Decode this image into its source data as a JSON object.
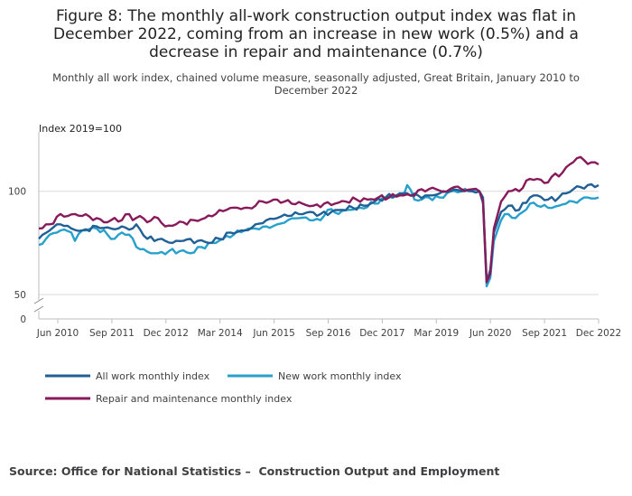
{
  "title": "Figure 8: The monthly all-work construction output index was flat in December 2022, coming from an increase in new work (0.5%) and a decrease in repair and maintenance (0.7%)",
  "subtitle": "Monthly all work index, chained volume measure, seasonally adjusted, Great Britain, January 2010 to December 2022",
  "source": "Source: Office for National Statistics –  Construction Output and Employment",
  "colors": {
    "all_work": "#206095",
    "new_work": "#27a0cc",
    "repair": "#871a5b"
  },
  "chart_data": {
    "type": "line",
    "title": "Figure 8",
    "ylabel": "Index 2019=100",
    "xlabel": "",
    "ylim": [
      50,
      127
    ],
    "y_ticks": [
      50,
      100
    ],
    "y_zero_label": "0",
    "axis_break": true,
    "x_ticks": [
      "Jun 2010",
      "Sep 2011",
      "Dec 2012",
      "Mar 2014",
      "Jun 2015",
      "Sep 2016",
      "Dec 2017",
      "Mar 2019",
      "Jun 2020",
      "Sep 2021",
      "Dec 2022"
    ],
    "x_start": "Jan 2010",
    "x_end": "Dec 2022",
    "n_points": 156,
    "legend_position": "bottom",
    "series": [
      {
        "name": "All work monthly index",
        "key": "all_work",
        "knots": [
          [
            0,
            77
          ],
          [
            3,
            81
          ],
          [
            6,
            84
          ],
          [
            9,
            82
          ],
          [
            12,
            81
          ],
          [
            16,
            83
          ],
          [
            20,
            82
          ],
          [
            23,
            83
          ],
          [
            26,
            82
          ],
          [
            27,
            84
          ],
          [
            30,
            77
          ],
          [
            34,
            77
          ],
          [
            37,
            75
          ],
          [
            40,
            76
          ],
          [
            44,
            76
          ],
          [
            47,
            75
          ],
          [
            50,
            77
          ],
          [
            53,
            80
          ],
          [
            57,
            81
          ],
          [
            60,
            84
          ],
          [
            63,
            86
          ],
          [
            66,
            87
          ],
          [
            69,
            88
          ],
          [
            72,
            89
          ],
          [
            75,
            90
          ],
          [
            78,
            89
          ],
          [
            81,
            90
          ],
          [
            84,
            91
          ],
          [
            87,
            92
          ],
          [
            90,
            93
          ],
          [
            93,
            95
          ],
          [
            96,
            97
          ],
          [
            99,
            98
          ],
          [
            102,
            99
          ],
          [
            105,
            98
          ],
          [
            108,
            98
          ],
          [
            111,
            99
          ],
          [
            114,
            100
          ],
          [
            117,
            100
          ],
          [
            120,
            100
          ],
          [
            122,
            100
          ],
          [
            123,
            97
          ],
          [
            124,
            56
          ],
          [
            125,
            62
          ],
          [
            126,
            80
          ],
          [
            128,
            90
          ],
          [
            130,
            93
          ],
          [
            133,
            91
          ],
          [
            136,
            97
          ],
          [
            138,
            98
          ],
          [
            141,
            96
          ],
          [
            144,
            97
          ],
          [
            146,
            99
          ],
          [
            148,
            101
          ],
          [
            150,
            102
          ],
          [
            152,
            103
          ],
          [
            155,
            103
          ]
        ],
        "values": []
      },
      {
        "name": "New work monthly index",
        "key": "new_work",
        "knots": [
          [
            0,
            74
          ],
          [
            3,
            79
          ],
          [
            6,
            81
          ],
          [
            9,
            80
          ],
          [
            10,
            76
          ],
          [
            12,
            81
          ],
          [
            16,
            82
          ],
          [
            19,
            79
          ],
          [
            21,
            77
          ],
          [
            23,
            80
          ],
          [
            25,
            79
          ],
          [
            27,
            73
          ],
          [
            29,
            72
          ],
          [
            31,
            70
          ],
          [
            33,
            70
          ],
          [
            36,
            71
          ],
          [
            39,
            71
          ],
          [
            42,
            70
          ],
          [
            45,
            73
          ],
          [
            48,
            75
          ],
          [
            51,
            77
          ],
          [
            54,
            79
          ],
          [
            57,
            81
          ],
          [
            60,
            82
          ],
          [
            63,
            83
          ],
          [
            66,
            84
          ],
          [
            69,
            86
          ],
          [
            72,
            87
          ],
          [
            75,
            86
          ],
          [
            78,
            86
          ],
          [
            80,
            91
          ],
          [
            83,
            89
          ],
          [
            86,
            91
          ],
          [
            89,
            92
          ],
          [
            93,
            94
          ],
          [
            96,
            97
          ],
          [
            99,
            98
          ],
          [
            101,
            98
          ],
          [
            102,
            103
          ],
          [
            104,
            96
          ],
          [
            106,
            96
          ],
          [
            108,
            97
          ],
          [
            111,
            97
          ],
          [
            114,
            100
          ],
          [
            117,
            100
          ],
          [
            120,
            100
          ],
          [
            122,
            100
          ],
          [
            123,
            94
          ],
          [
            124,
            54
          ],
          [
            125,
            58
          ],
          [
            126,
            76
          ],
          [
            128,
            86
          ],
          [
            130,
            89
          ],
          [
            132,
            87
          ],
          [
            134,
            90
          ],
          [
            136,
            94
          ],
          [
            138,
            93
          ],
          [
            141,
            92
          ],
          [
            144,
            93
          ],
          [
            146,
            94
          ],
          [
            148,
            95
          ],
          [
            150,
            96
          ],
          [
            152,
            97
          ],
          [
            155,
            97
          ]
        ],
        "values": []
      },
      {
        "name": "Repair and maintenance monthly index",
        "key": "repair",
        "knots": [
          [
            0,
            82
          ],
          [
            3,
            84
          ],
          [
            6,
            89
          ],
          [
            8,
            88
          ],
          [
            10,
            89
          ],
          [
            12,
            88
          ],
          [
            16,
            87
          ],
          [
            18,
            85
          ],
          [
            20,
            86
          ],
          [
            23,
            86
          ],
          [
            25,
            89
          ],
          [
            26,
            86
          ],
          [
            28,
            88
          ],
          [
            30,
            85
          ],
          [
            33,
            87
          ],
          [
            35,
            83
          ],
          [
            38,
            84
          ],
          [
            40,
            85
          ],
          [
            43,
            86
          ],
          [
            46,
            87
          ],
          [
            49,
            89
          ],
          [
            52,
            91
          ],
          [
            55,
            92
          ],
          [
            58,
            92
          ],
          [
            60,
            93
          ],
          [
            62,
            95
          ],
          [
            64,
            95
          ],
          [
            66,
            96
          ],
          [
            68,
            95
          ],
          [
            70,
            94
          ],
          [
            73,
            94
          ],
          [
            76,
            93
          ],
          [
            79,
            94
          ],
          [
            82,
            94
          ],
          [
            85,
            95
          ],
          [
            88,
            96
          ],
          [
            91,
            96
          ],
          [
            94,
            97
          ],
          [
            97,
            97
          ],
          [
            100,
            98
          ],
          [
            103,
            98
          ],
          [
            106,
            101
          ],
          [
            108,
            101
          ],
          [
            110,
            101
          ],
          [
            113,
            100
          ],
          [
            115,
            102
          ],
          [
            117,
            101
          ],
          [
            120,
            101
          ],
          [
            122,
            100
          ],
          [
            123,
            95
          ],
          [
            124,
            56
          ],
          [
            125,
            60
          ],
          [
            126,
            82
          ],
          [
            128,
            95
          ],
          [
            130,
            100
          ],
          [
            133,
            100
          ],
          [
            136,
            106
          ],
          [
            138,
            106
          ],
          [
            140,
            104
          ],
          [
            142,
            107
          ],
          [
            145,
            109
          ],
          [
            147,
            113
          ],
          [
            149,
            116
          ],
          [
            151,
            115
          ],
          [
            153,
            114
          ],
          [
            155,
            113
          ]
        ],
        "values": []
      }
    ]
  }
}
